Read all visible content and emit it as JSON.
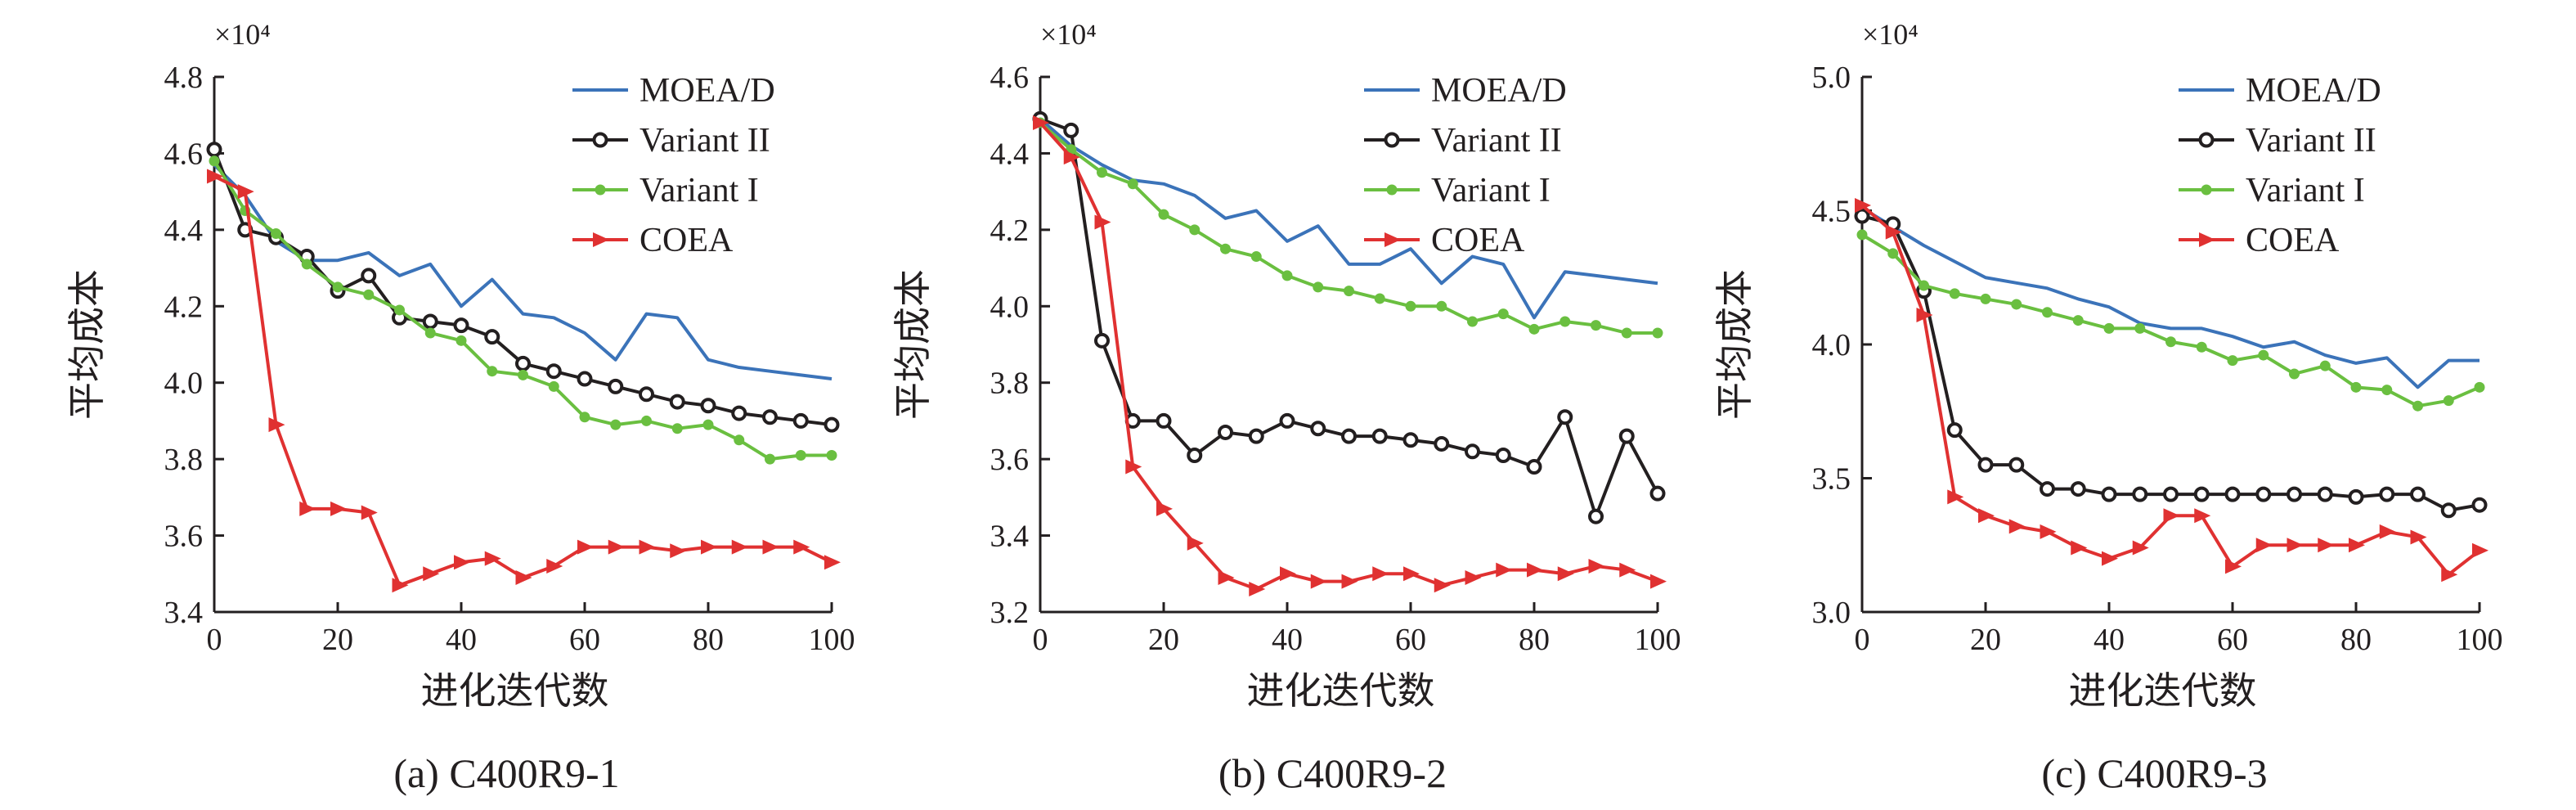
{
  "chart_data": [
    {
      "type": "line",
      "caption": "(a) C400R9-1",
      "scale_label": "×10⁴",
      "xlabel": "进化迭代数",
      "ylabel": "平均成本",
      "xlim": [
        0,
        100
      ],
      "ylim": [
        3.4,
        4.8
      ],
      "xticks": [
        0,
        20,
        40,
        60,
        80,
        100
      ],
      "yticks": [
        3.4,
        3.6,
        3.8,
        4.0,
        4.2,
        4.4,
        4.6,
        4.8
      ],
      "ytick_labels": [
        "3.4",
        "3.6",
        "3.8",
        "4.0",
        "4.2",
        "4.4",
        "4.6",
        "4.8"
      ],
      "x": [
        0,
        5,
        10,
        15,
        20,
        25,
        30,
        35,
        40,
        45,
        50,
        55,
        60,
        65,
        70,
        75,
        80,
        85,
        90,
        95,
        100
      ],
      "series": [
        {
          "name": "MOEA/D",
          "color": "#3b73b9",
          "marker": "none",
          "values": [
            4.57,
            4.49,
            4.37,
            4.32,
            4.32,
            4.34,
            4.28,
            4.31,
            4.2,
            4.27,
            4.18,
            4.17,
            4.13,
            4.06,
            4.18,
            4.17,
            4.06,
            4.04,
            4.03,
            4.02,
            4.01
          ]
        },
        {
          "name": "Variant II",
          "color": "#231f20",
          "marker": "circle",
          "values": [
            4.61,
            4.4,
            4.38,
            4.33,
            4.24,
            4.28,
            4.17,
            4.16,
            4.15,
            4.12,
            4.05,
            4.03,
            4.01,
            3.99,
            3.97,
            3.95,
            3.94,
            3.92,
            3.91,
            3.9,
            3.89
          ]
        },
        {
          "name": "Variant I",
          "color": "#6abf40",
          "marker": "dot",
          "values": [
            4.58,
            4.45,
            4.39,
            4.31,
            4.25,
            4.23,
            4.19,
            4.13,
            4.11,
            4.03,
            4.02,
            3.99,
            3.91,
            3.89,
            3.9,
            3.88,
            3.89,
            3.85,
            3.8,
            3.81,
            3.81
          ]
        },
        {
          "name": "COEA",
          "color": "#e03131",
          "marker": "triangle",
          "values": [
            4.54,
            4.5,
            3.89,
            3.67,
            3.67,
            3.66,
            3.47,
            3.5,
            3.53,
            3.54,
            3.49,
            3.52,
            3.57,
            3.57,
            3.57,
            3.56,
            3.57,
            3.57,
            3.57,
            3.57,
            3.53
          ]
        }
      ]
    },
    {
      "type": "line",
      "caption": "(b) C400R9-2",
      "scale_label": "×10⁴",
      "xlabel": "进化迭代数",
      "ylabel": "平均成本",
      "xlim": [
        0,
        100
      ],
      "ylim": [
        3.2,
        4.6
      ],
      "xticks": [
        0,
        20,
        40,
        60,
        80,
        100
      ],
      "yticks": [
        3.2,
        3.4,
        3.6,
        3.8,
        4.0,
        4.2,
        4.4,
        4.6
      ],
      "ytick_labels": [
        "3.2",
        "3.4",
        "3.6",
        "3.8",
        "4.0",
        "4.2",
        "4.4",
        "4.6"
      ],
      "x": [
        0,
        5,
        10,
        15,
        20,
        25,
        30,
        35,
        40,
        45,
        50,
        55,
        60,
        65,
        70,
        75,
        80,
        85,
        90,
        95,
        100
      ],
      "series": [
        {
          "name": "MOEA/D",
          "color": "#3b73b9",
          "marker": "none",
          "values": [
            4.49,
            4.42,
            4.37,
            4.33,
            4.32,
            4.29,
            4.23,
            4.25,
            4.17,
            4.21,
            4.11,
            4.11,
            4.15,
            4.06,
            4.13,
            4.11,
            3.97,
            4.09,
            4.08,
            4.07,
            4.06
          ]
        },
        {
          "name": "Variant II",
          "color": "#231f20",
          "marker": "circle",
          "values": [
            4.49,
            4.46,
            3.91,
            3.7,
            3.7,
            3.61,
            3.67,
            3.66,
            3.7,
            3.68,
            3.66,
            3.66,
            3.65,
            3.64,
            3.62,
            3.61,
            3.58,
            3.71,
            3.45,
            3.66,
            3.51
          ]
        },
        {
          "name": "Variant I",
          "color": "#6abf40",
          "marker": "dot",
          "values": [
            4.48,
            4.41,
            4.35,
            4.32,
            4.24,
            4.2,
            4.15,
            4.13,
            4.08,
            4.05,
            4.04,
            4.02,
            4.0,
            4.0,
            3.96,
            3.98,
            3.94,
            3.96,
            3.95,
            3.93,
            3.93
          ]
        },
        {
          "name": "COEA",
          "color": "#e03131",
          "marker": "triangle",
          "values": [
            4.48,
            4.39,
            4.22,
            3.58,
            3.47,
            3.38,
            3.29,
            3.26,
            3.3,
            3.28,
            3.28,
            3.3,
            3.3,
            3.27,
            3.29,
            3.31,
            3.31,
            3.3,
            3.32,
            3.31,
            3.28
          ]
        }
      ]
    },
    {
      "type": "line",
      "caption": "(c) C400R9-3",
      "scale_label": "×10⁴",
      "xlabel": "进化迭代数",
      "ylabel": "平均成本",
      "xlim": [
        0,
        100
      ],
      "ylim": [
        3.0,
        5.0
      ],
      "xticks": [
        0,
        20,
        40,
        60,
        80,
        100
      ],
      "yticks": [
        3.0,
        3.5,
        4.0,
        4.5,
        5.0
      ],
      "ytick_labels": [
        "3.0",
        "3.5",
        "4.0",
        "4.5",
        "5.0"
      ],
      "x": [
        0,
        5,
        10,
        15,
        20,
        25,
        30,
        35,
        40,
        45,
        50,
        55,
        60,
        65,
        70,
        75,
        80,
        85,
        90,
        95,
        100
      ],
      "series": [
        {
          "name": "MOEA/D",
          "color": "#3b73b9",
          "marker": "none",
          "values": [
            4.51,
            4.44,
            4.37,
            4.31,
            4.25,
            4.23,
            4.21,
            4.17,
            4.14,
            4.08,
            4.06,
            4.06,
            4.03,
            3.99,
            4.01,
            3.96,
            3.93,
            3.95,
            3.84,
            3.94,
            3.94
          ]
        },
        {
          "name": "Variant II",
          "color": "#231f20",
          "marker": "circle",
          "values": [
            4.48,
            4.45,
            4.2,
            3.68,
            3.55,
            3.55,
            3.46,
            3.46,
            3.44,
            3.44,
            3.44,
            3.44,
            3.44,
            3.44,
            3.44,
            3.44,
            3.43,
            3.44,
            3.44,
            3.38,
            3.4
          ]
        },
        {
          "name": "Variant I",
          "color": "#6abf40",
          "marker": "dot",
          "values": [
            4.41,
            4.34,
            4.22,
            4.19,
            4.17,
            4.15,
            4.12,
            4.09,
            4.06,
            4.06,
            4.01,
            3.99,
            3.94,
            3.96,
            3.89,
            3.92,
            3.84,
            3.83,
            3.77,
            3.79,
            3.84
          ]
        },
        {
          "name": "COEA",
          "color": "#e03131",
          "marker": "triangle",
          "values": [
            4.52,
            4.42,
            4.11,
            3.43,
            3.36,
            3.32,
            3.3,
            3.24,
            3.2,
            3.24,
            3.36,
            3.36,
            3.17,
            3.25,
            3.25,
            3.25,
            3.25,
            3.3,
            3.28,
            3.14,
            3.23
          ]
        }
      ]
    }
  ]
}
